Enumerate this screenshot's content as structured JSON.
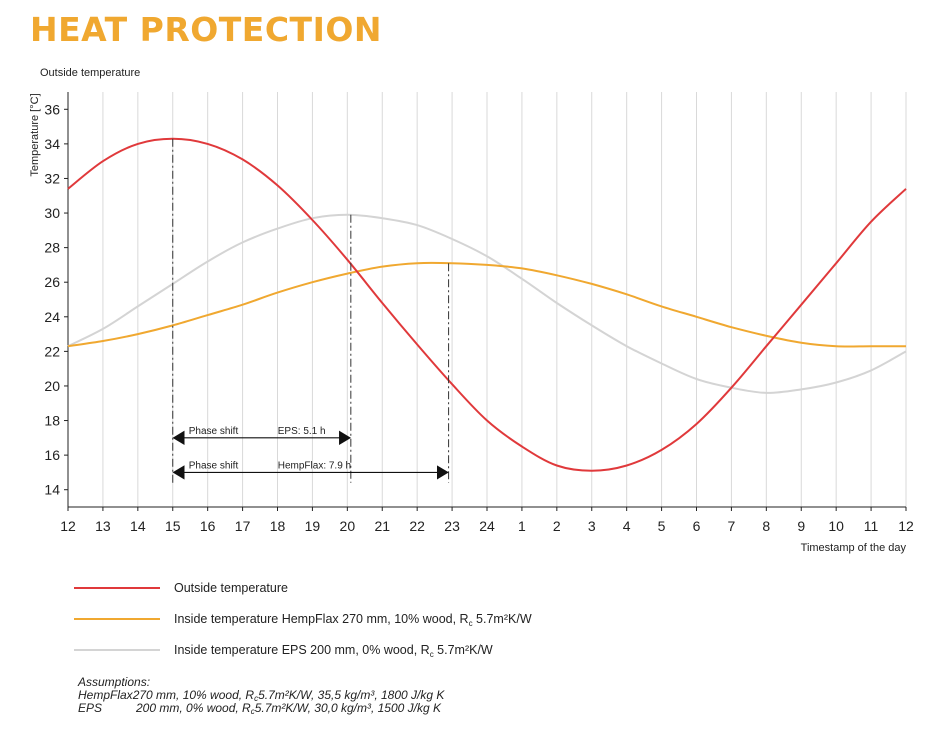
{
  "header": {
    "title": "HEAT PROTECTION",
    "subtitle": "Outside temperature"
  },
  "chart_data": {
    "type": "line",
    "ylabel": "Temperature [°C]",
    "xlabel": "Timestamp of the day",
    "ylim": [
      13,
      37
    ],
    "yticks": [
      14,
      16,
      18,
      20,
      22,
      24,
      26,
      28,
      30,
      32,
      34,
      36
    ],
    "categories": [
      "12",
      "13",
      "14",
      "15",
      "16",
      "17",
      "18",
      "19",
      "20",
      "21",
      "22",
      "23",
      "24",
      "1",
      "2",
      "3",
      "4",
      "5",
      "6",
      "7",
      "8",
      "9",
      "10",
      "11",
      "12"
    ],
    "grid": "vertical",
    "series": [
      {
        "name": "Outside temperature",
        "color": "#e0393b",
        "values": [
          31.4,
          33.0,
          34.0,
          34.3,
          34.0,
          33.1,
          31.6,
          29.6,
          27.3,
          24.8,
          22.4,
          20.1,
          18.0,
          16.5,
          15.4,
          15.1,
          15.4,
          16.3,
          17.8,
          19.9,
          22.3,
          24.7,
          27.1,
          29.5,
          31.4
        ]
      },
      {
        "name": "Inside temperature HempFlax 270 mm, 10% wood, Rc 5.7m²K/W",
        "color": "#f0a830",
        "values": [
          22.3,
          22.6,
          23.0,
          23.5,
          24.1,
          24.7,
          25.4,
          26.0,
          26.5,
          26.9,
          27.1,
          27.1,
          27.0,
          26.8,
          26.4,
          25.9,
          25.3,
          24.6,
          24.0,
          23.4,
          22.9,
          22.5,
          22.3,
          22.3,
          22.3
        ]
      },
      {
        "name": "Inside temperature EPS 200 mm, 0% wood, Rc 5.7m²K/W",
        "color": "#d4d4d4",
        "values": [
          22.3,
          23.3,
          24.6,
          25.9,
          27.2,
          28.3,
          29.1,
          29.7,
          29.9,
          29.7,
          29.3,
          28.5,
          27.5,
          26.2,
          24.8,
          23.5,
          22.3,
          21.3,
          20.4,
          19.9,
          19.6,
          19.8,
          20.2,
          20.9,
          22.0
        ]
      }
    ],
    "annotations": [
      {
        "label": "Phase shift",
        "value_label": "EPS: 5.1 h",
        "from_x": 3,
        "to_x": 8.1,
        "y": 17
      },
      {
        "label": "Phase shift",
        "value_label": "HempFlax: 7.9 h",
        "from_x": 3,
        "to_x": 10.9,
        "y": 15
      }
    ]
  },
  "legend": {
    "items": [
      {
        "label": "Outside temperature",
        "color": "#e0393b"
      },
      {
        "label_main": "Inside temperature HempFlax 270 mm, 10% wood, R",
        "label_sub": "c",
        "label_end": " 5.7m²K/W",
        "color": "#f0a830"
      },
      {
        "label_main": "Inside temperature EPS 200 mm, 0% wood, R",
        "label_sub": "c",
        "label_end": " 5.7m²K/W",
        "color": "#d4d4d4"
      }
    ]
  },
  "assumptions": {
    "heading": "Assumptions:",
    "rows": [
      {
        "name": "HempFlax",
        "pre": " 270 mm, 10% wood, R",
        "sub": "c",
        "post": " 5.7m²K/W, 35,5 kg/m³, 1800 J/kg K"
      },
      {
        "name": "EPS",
        "pre": "200 mm, 0% wood, R",
        "sub": "c",
        "post": " 5.7m²K/W, 30,0 kg/m³, 1500 J/kg K"
      }
    ]
  }
}
